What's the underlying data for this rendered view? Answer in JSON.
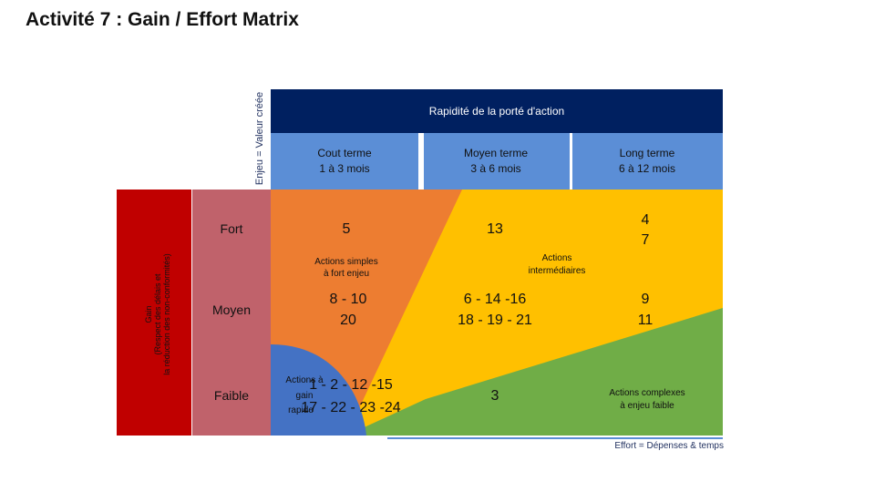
{
  "title": "Activité 7 :  Gain / Effort Matrix",
  "y_axis_title": "Enjeu = Valeur créée",
  "gain_label": {
    "line1": "Gain",
    "line2": "(Respect des délais et",
    "line3": "la réduction des non-conformités)"
  },
  "header": "Rapidité de la porté d'action",
  "columns": [
    {
      "line1": "Cout terme",
      "line2": "1 à 3 mois"
    },
    {
      "line1": "Moyen terme",
      "line2": "3 à 6 mois"
    },
    {
      "line1": "Long terme",
      "line2": "6 à 12 mois"
    }
  ],
  "rows": [
    "Fort",
    "Moyen",
    "Faible"
  ],
  "cells": {
    "fort_court": "5",
    "fort_moyen": "13",
    "fort_long_1": "4",
    "fort_long_2": "7",
    "moyen_court_1": "8 - 10",
    "moyen_court_2": "20",
    "moyen_moyen_1": "6 - 14 -16",
    "moyen_moyen_2": "18 - 19 - 21",
    "moyen_long_1": "9",
    "moyen_long_2": "11",
    "faible_court_1": "1 - 2 - 12 -15",
    "faible_court_2": "17 - 22 - 23 -24",
    "faible_moyen": "3"
  },
  "zones": {
    "simples_1": "Actions simples",
    "simples_2": "à fort enjeu",
    "intermediaires_1": "Actions",
    "intermediaires_2": "intermédiaires",
    "complexes_1": "Actions complexes",
    "complexes_2": "à enjeu faible",
    "rapide_1": "Actions à",
    "rapide_2": "gain",
    "rapide_3": "rapide"
  },
  "x_axis_label": "Effort = Dépenses & temps",
  "colors": {
    "navy": "#002060",
    "blue_header": "#5b8ed6",
    "red_bar": "#c00000",
    "row_label": "#c0626b",
    "orange": "#ed7d31",
    "yellow": "#ffc000",
    "green": "#70ad47",
    "blue_zone": "#4472c4"
  }
}
